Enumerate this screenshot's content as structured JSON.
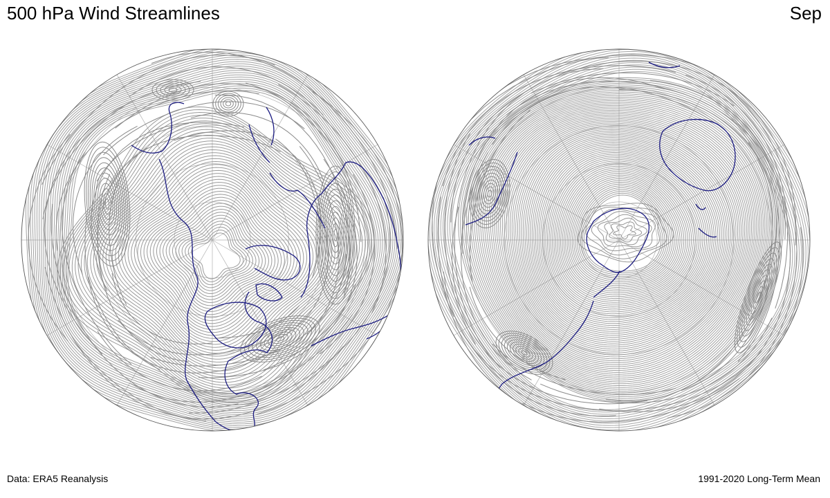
{
  "header": {
    "title": "500 hPa Wind Streamlines",
    "month": "Sep"
  },
  "footer": {
    "source": "Data: ERA5 Reanalysis",
    "period": "1991-2020 Long-Term Mean"
  },
  "colors": {
    "streamline": "#8a8a8a",
    "coastline": "#1a1a80",
    "gridline": "#b0b0b0",
    "outline": "#555555"
  },
  "panels": [
    {
      "hemisphere": "north"
    },
    {
      "hemisphere": "south"
    }
  ]
}
